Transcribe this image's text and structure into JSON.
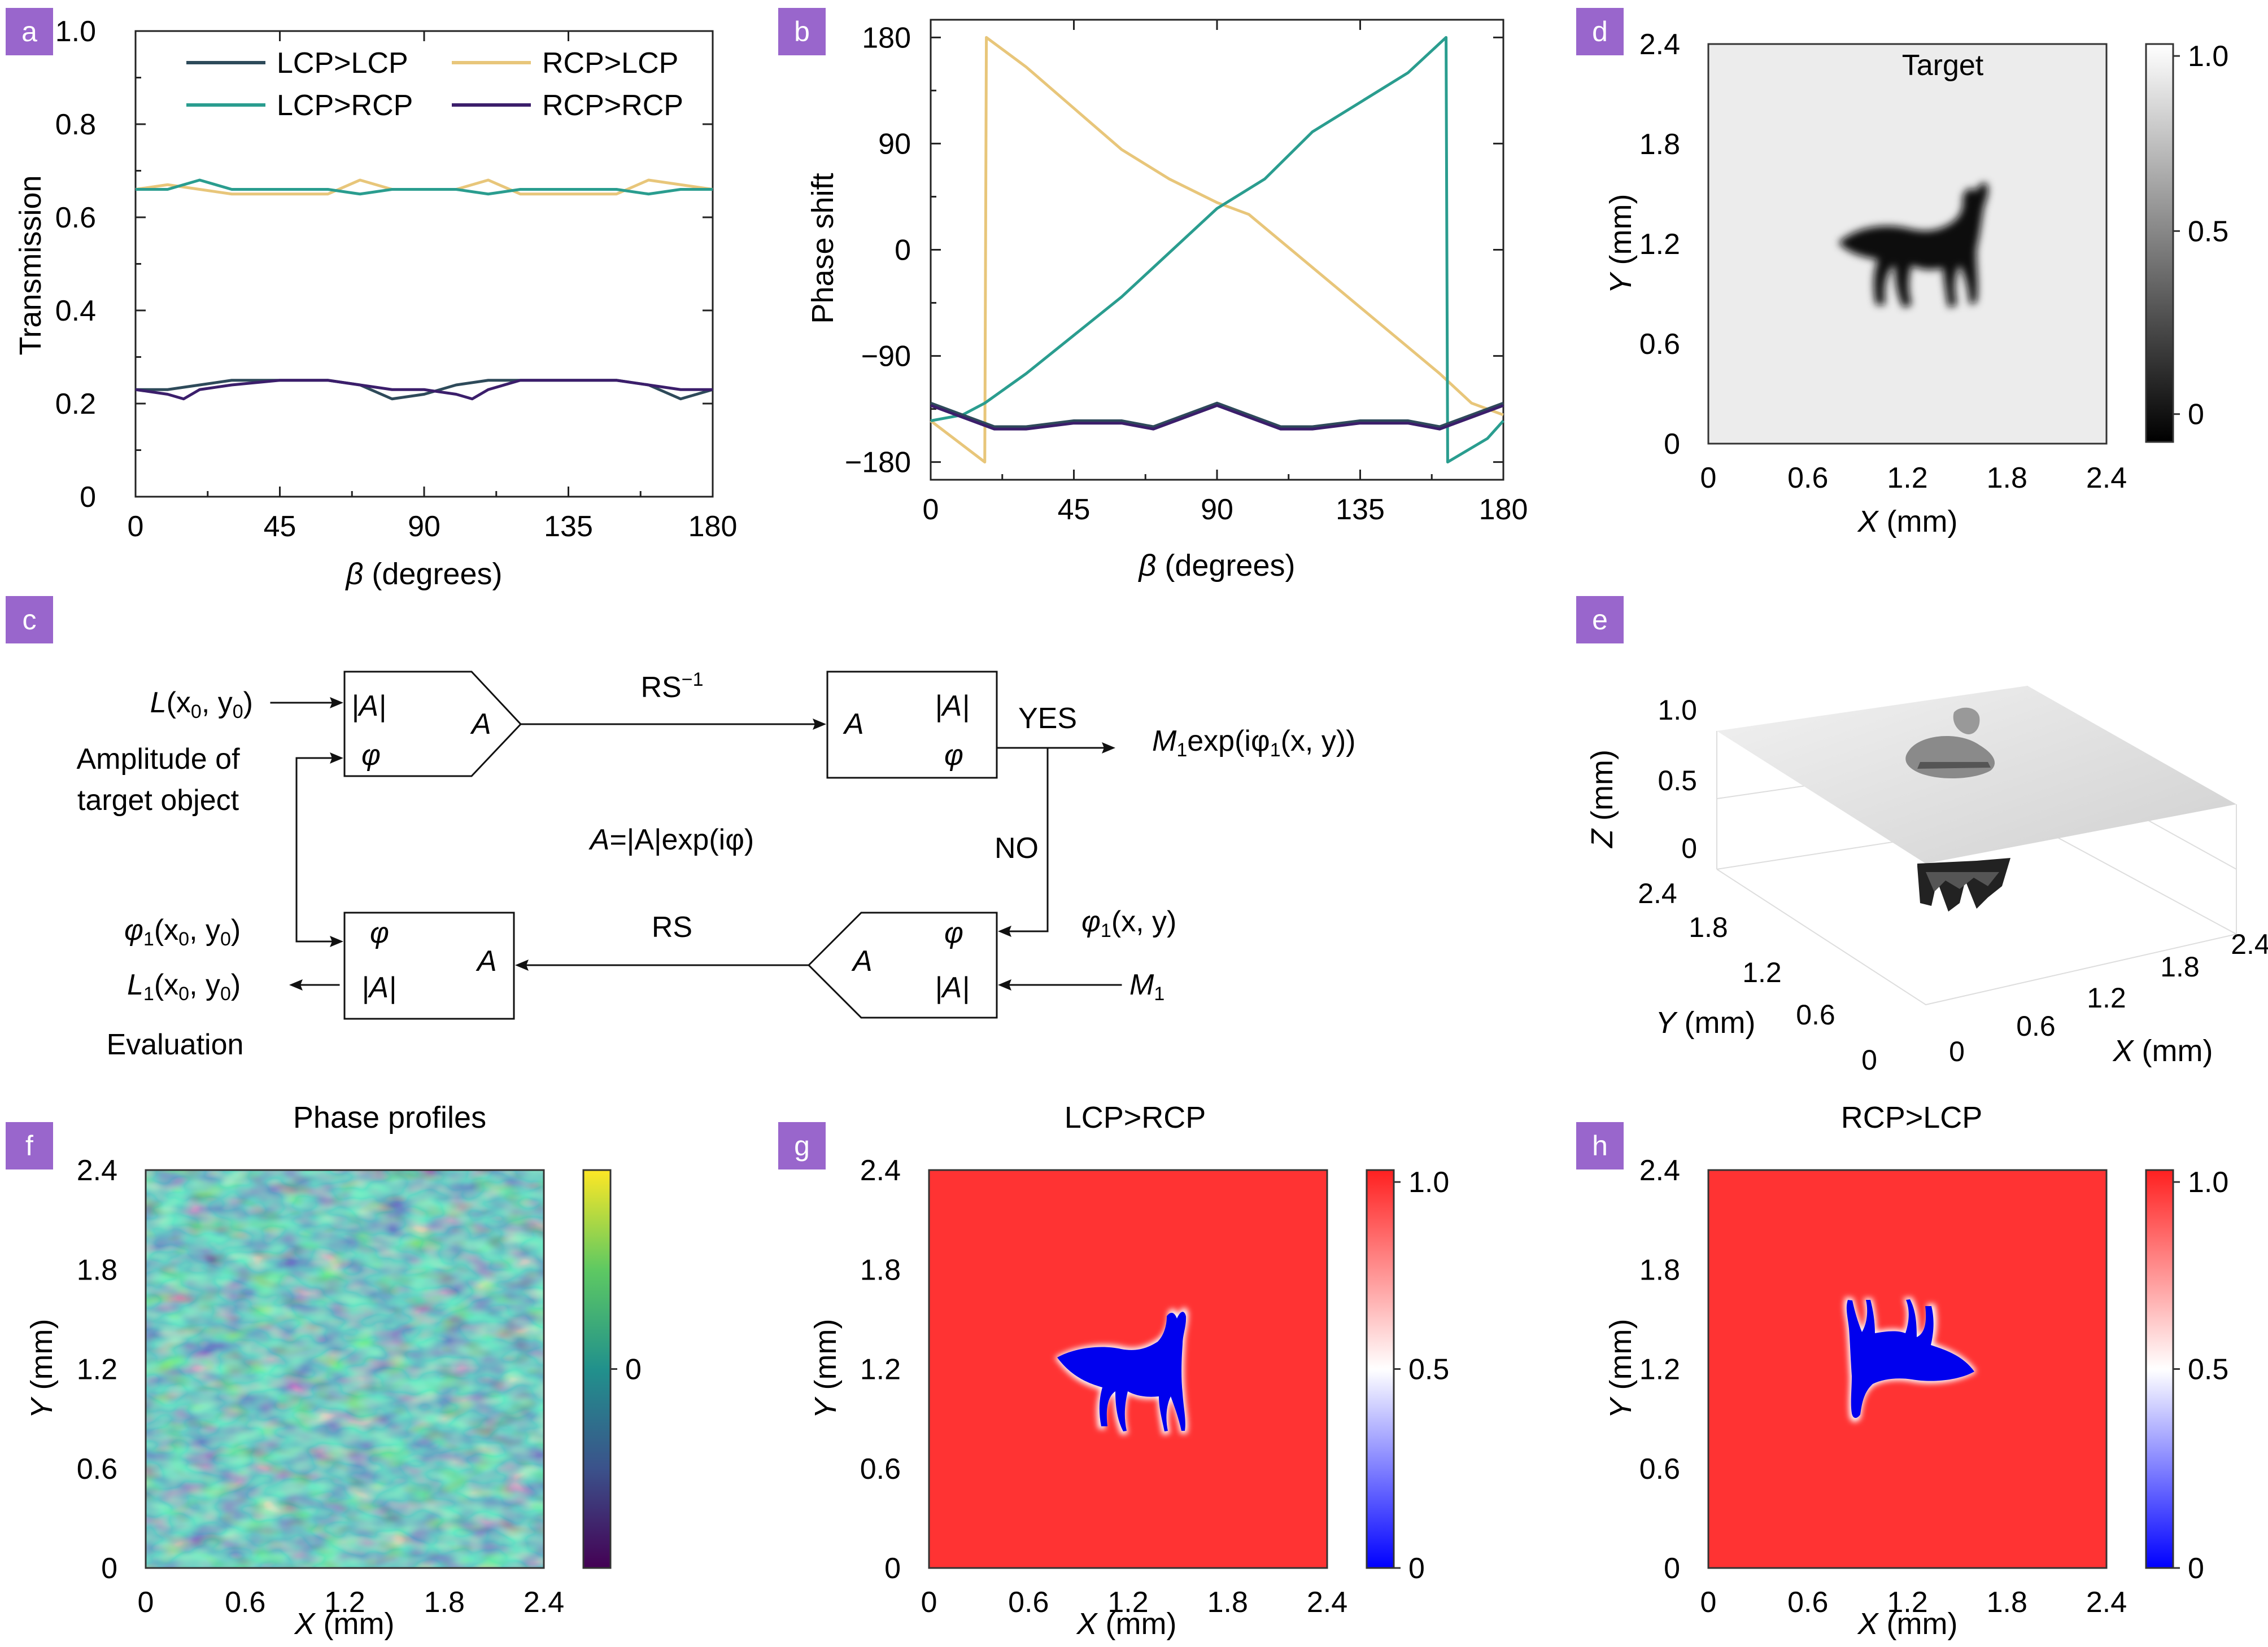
{
  "panels": {
    "a": {
      "letter": "a"
    },
    "b": {
      "letter": "b"
    },
    "c": {
      "letter": "c"
    },
    "d": {
      "letter": "d"
    },
    "e": {
      "letter": "e"
    },
    "f": {
      "letter": "f"
    },
    "g": {
      "letter": "g"
    },
    "h": {
      "letter": "h"
    }
  },
  "chart_data": [
    {
      "id": "a",
      "type": "line",
      "xlabel_symbol": "β",
      "xlabel_rest": " (degrees)",
      "ylabel": "Transmission",
      "xlim": [
        0,
        180
      ],
      "ylim": [
        0,
        1.0
      ],
      "xticks": [
        "0",
        "45",
        "90",
        "135",
        "180"
      ],
      "yticks": [
        "0",
        "0.2",
        "0.4",
        "0.6",
        "0.8",
        "1.0"
      ],
      "legend": [
        "LCP>LCP",
        "RCP>LCP",
        "LCP>RCP",
        "RCP>RCP"
      ],
      "legend_placement": "top",
      "series": [
        {
          "name": "LCP>LCP",
          "color": "#2e4a5a",
          "x": [
            0,
            10,
            20,
            30,
            45,
            60,
            70,
            80,
            90,
            100,
            110,
            120,
            135,
            150,
            160,
            170,
            180
          ],
          "y": [
            0.23,
            0.23,
            0.24,
            0.25,
            0.25,
            0.25,
            0.24,
            0.21,
            0.22,
            0.24,
            0.25,
            0.25,
            0.25,
            0.25,
            0.24,
            0.21,
            0.23
          ]
        },
        {
          "name": "RCP>LCP",
          "color": "#e8c67a",
          "x": [
            0,
            10,
            20,
            30,
            45,
            60,
            70,
            80,
            90,
            100,
            110,
            120,
            135,
            150,
            160,
            170,
            180
          ],
          "y": [
            0.66,
            0.67,
            0.66,
            0.65,
            0.65,
            0.65,
            0.68,
            0.66,
            0.66,
            0.66,
            0.68,
            0.65,
            0.65,
            0.65,
            0.68,
            0.67,
            0.66
          ]
        },
        {
          "name": "LCP>RCP",
          "color": "#2a9d8f",
          "x": [
            0,
            10,
            20,
            30,
            45,
            60,
            70,
            80,
            90,
            100,
            110,
            120,
            135,
            150,
            160,
            170,
            180
          ],
          "y": [
            0.66,
            0.66,
            0.68,
            0.66,
            0.66,
            0.66,
            0.65,
            0.66,
            0.66,
            0.66,
            0.65,
            0.66,
            0.66,
            0.66,
            0.65,
            0.66,
            0.66
          ]
        },
        {
          "name": "RCP>RCP",
          "color": "#3b1e6b",
          "x": [
            0,
            10,
            15,
            20,
            30,
            45,
            60,
            70,
            80,
            90,
            100,
            105,
            110,
            120,
            135,
            150,
            160,
            170,
            180
          ],
          "y": [
            0.23,
            0.22,
            0.21,
            0.23,
            0.24,
            0.25,
            0.25,
            0.24,
            0.23,
            0.23,
            0.22,
            0.21,
            0.23,
            0.25,
            0.25,
            0.25,
            0.24,
            0.23,
            0.23
          ]
        }
      ]
    },
    {
      "id": "b",
      "type": "line",
      "xlabel_symbol": "β",
      "xlabel_rest": " (degrees)",
      "ylabel": "Phase shift",
      "xlim": [
        0,
        180
      ],
      "ylim": [
        -195,
        195
      ],
      "xticks": [
        "0",
        "45",
        "90",
        "135",
        "180"
      ],
      "yticks": [
        "−180",
        "−90",
        "0",
        "90",
        "180"
      ],
      "ytick_values": [
        -180,
        -90,
        0,
        90,
        180
      ],
      "series": [
        {
          "color": "#e8c67a",
          "x": [
            0,
            17,
            17.5,
            30,
            60,
            75,
            90,
            100,
            140,
            160,
            170,
            180
          ],
          "y": [
            -145,
            -180,
            180,
            155,
            85,
            60,
            40,
            30,
            -60,
            -105,
            -130,
            -140
          ]
        },
        {
          "color": "#2a9d8f",
          "x": [
            0,
            10,
            17,
            30,
            60,
            90,
            105,
            120,
            150,
            162,
            162.5,
            175,
            180
          ],
          "y": [
            -145,
            -140,
            -130,
            -105,
            -40,
            35,
            60,
            100,
            150,
            180,
            -180,
            -160,
            -145
          ]
        },
        {
          "color": "#2e4a5a",
          "x": [
            0,
            10,
            20,
            30,
            45,
            60,
            70,
            80,
            90,
            100,
            110,
            120,
            135,
            150,
            160,
            170,
            180
          ],
          "y": [
            -130,
            -140,
            -150,
            -150,
            -145,
            -145,
            -150,
            -140,
            -130,
            -140,
            -150,
            -150,
            -145,
            -145,
            -150,
            -140,
            -130
          ]
        },
        {
          "color": "#3b1e6b",
          "x": [
            0,
            10,
            20,
            30,
            45,
            60,
            70,
            80,
            90,
            100,
            110,
            120,
            135,
            150,
            160,
            170,
            180
          ],
          "y": [
            -132,
            -142,
            -152,
            -152,
            -147,
            -147,
            -152,
            -142,
            -132,
            -142,
            -152,
            -152,
            -147,
            -147,
            -152,
            -142,
            -132
          ]
        }
      ]
    },
    {
      "id": "d",
      "type": "heatmap",
      "title": "Target",
      "xlabel_symbol": "X",
      "xlabel_rest": " (mm)",
      "ylabel_symbol": "Y",
      "ylabel_rest": " (mm)",
      "xticks": [
        "0",
        "0.6",
        "1.2",
        "1.8",
        "2.4"
      ],
      "yticks": [
        "0",
        "0.6",
        "1.2",
        "1.8",
        "2.4"
      ],
      "colorbar_ticks": [
        "0",
        "0.5",
        "1.0"
      ],
      "colormap": "gray"
    },
    {
      "id": "f",
      "type": "heatmap",
      "title": "Phase profiles",
      "xlabel_symbol": "X",
      "xlabel_rest": " (mm)",
      "ylabel_symbol": "Y",
      "ylabel_rest": " (mm)",
      "xticks": [
        "0",
        "0.6",
        "1.2",
        "1.8",
        "2.4"
      ],
      "yticks": [
        "0",
        "0.6",
        "1.2",
        "1.8",
        "2.4"
      ],
      "colorbar_ticks": [
        "0"
      ],
      "colormap": "viridis"
    },
    {
      "id": "g",
      "type": "heatmap",
      "title": "LCP>RCP",
      "xlabel_symbol": "X",
      "xlabel_rest": " (mm)",
      "ylabel_symbol": "Y",
      "ylabel_rest": " (mm)",
      "xticks": [
        "0",
        "0.6",
        "1.2",
        "1.8",
        "2.4"
      ],
      "yticks": [
        "0",
        "0.6",
        "1.2",
        "1.8",
        "2.4"
      ],
      "colorbar_ticks": [
        "0",
        "0.5",
        "1.0"
      ],
      "colormap": "bwr"
    },
    {
      "id": "h",
      "type": "heatmap",
      "title": "RCP>LCP",
      "xlabel_symbol": "X",
      "xlabel_rest": " (mm)",
      "ylabel_symbol": "Y",
      "ylabel_rest": " (mm)",
      "xticks": [
        "0",
        "0.6",
        "1.2",
        "1.8",
        "2.4"
      ],
      "yticks": [
        "0",
        "0.6",
        "1.2",
        "1.8",
        "2.4"
      ],
      "colorbar_ticks": [
        "0",
        "0.5",
        "1.0"
      ],
      "colormap": "bwr"
    }
  ],
  "panel_e": {
    "zticks": [
      "0",
      "0.5",
      "1.0"
    ],
    "yticks": [
      "0",
      "0.6",
      "1.2",
      "1.8",
      "2.4"
    ],
    "xticks": [
      "0",
      "0.6",
      "1.2",
      "1.8",
      "2.4"
    ],
    "zlabel_symbol": "Z",
    "ylabel_symbol": "Y",
    "xlabel_symbol": "X",
    "axis_unit": " (mm)"
  },
  "flowchart": {
    "input_L_var": "L",
    "input_L_args_a": "(x",
    "input_L_sub0": "0",
    "input_L_args_b": ", y",
    "input_L_sub1": "0",
    "input_L_args_c": ")",
    "amplitude_line1": "Amplitude of",
    "amplitude_line2": "target object",
    "box1_absA": "|A|",
    "box1_A": "A",
    "box1_phi": "φ",
    "rs_inv_label": "RS",
    "rs_inv_sup": "−1",
    "box2_A": "A",
    "box2_absA": "|A|",
    "box2_phi": "φ",
    "yes_label": "YES",
    "no_label": "NO",
    "output_M": "M",
    "output_sub": "1",
    "output_exp": "exp(iφ",
    "output_sub2": "1",
    "output_args": "(x, y))",
    "relation_A": "A",
    "relation_mid": "=|A|exp(iφ)",
    "phi1_label": "φ",
    "phi1_sub": "1",
    "phi1_args": "(x, y)",
    "m1_label": "M",
    "m1_sub": "1",
    "box3_A": "A",
    "box3_phi": "φ",
    "box3_absA": "|A|",
    "rs_label": "RS",
    "box4_phi": "φ",
    "box4_A": "A",
    "box4_absA": "|A|",
    "left_phi1": "φ",
    "left_phi1_sub": "1",
    "left_phi1_args": "(x",
    "left_phi1_sub0": "0",
    "left_phi1_args2": ", y",
    "left_phi1_sub1": "0",
    "left_phi1_args3": ")",
    "left_L1": "L",
    "left_L1_sub": "1",
    "left_L1_args": "(x",
    "left_L1_sub0": "0",
    "left_L1_args2": ", y",
    "left_L1_sub1": "0",
    "left_L1_args3": ")",
    "evaluation": "Evaluation"
  }
}
